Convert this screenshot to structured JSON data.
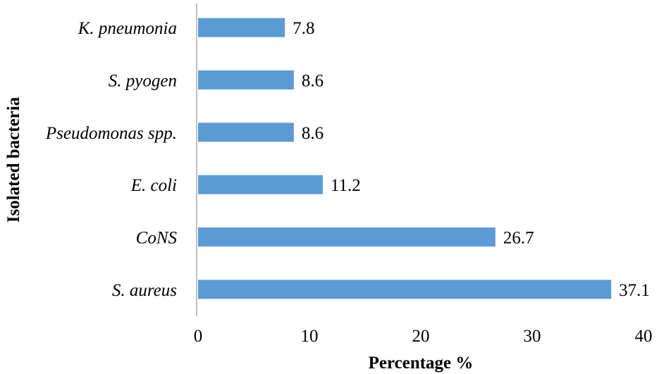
{
  "chart_data": {
    "type": "bar",
    "orientation": "horizontal",
    "categories": [
      "S. aureus",
      "CoNS",
      "E. coli",
      "Pseudomonas spp.",
      "S. pyogen",
      "K. pneumonia"
    ],
    "values": [
      37.1,
      26.7,
      11.2,
      8.6,
      8.6,
      7.8
    ],
    "value_labels": [
      "37.1",
      "26.7",
      "11.2",
      "8.6",
      "8.6",
      "7.8"
    ],
    "xlabel": "Percentage %",
    "ylabel": "Isolated bacteria",
    "xlim": [
      0,
      40
    ],
    "xticks": [
      "0",
      "10",
      "20",
      "30",
      "40"
    ],
    "bar_color": "#5b9bd5",
    "axis_color": "#bfbfbf",
    "grid": false,
    "legend": "none"
  }
}
